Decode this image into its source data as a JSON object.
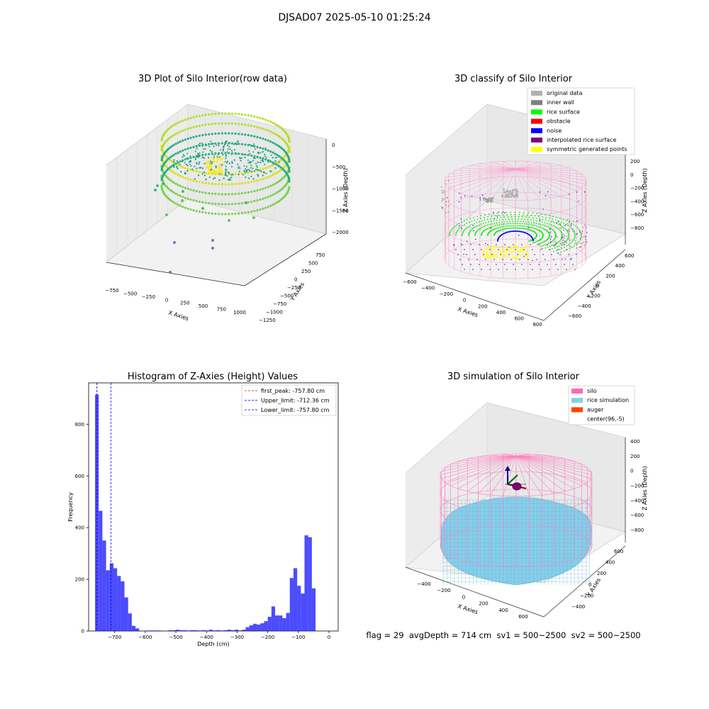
{
  "figure": {
    "suptitle": "DJSAD07 2025-05-10 01:25:24",
    "footer": "flag = 29  avgDepth = 714 cm  sv1 = 500~2500  sv2 = 500~2500"
  },
  "panels": {
    "raw": {
      "title": "3D Plot of Silo Interior(row data)",
      "xlabel": "X Axies",
      "ylabel": "Y Axies",
      "zlabel": "Z Axies (Depth)",
      "xticks": [
        "−750",
        "−500",
        "−250",
        "0",
        "250",
        "500",
        "750",
        "1000"
      ],
      "yticks": [
        "750",
        "500",
        "250",
        "0",
        "−250",
        "−500",
        "−750",
        "−1000",
        "−1250"
      ],
      "zticks": [
        "0",
        "−500",
        "−1000",
        "−1500",
        "−2000"
      ]
    },
    "classify": {
      "title": "3D classify of Silo Interior",
      "xlabel": "X Axies",
      "ylabel": "Y Axies",
      "zlabel": "Z Axies (Depth)",
      "xticks": [
        "−600",
        "−400",
        "−200",
        "0",
        "200",
        "400",
        "600",
        "800"
      ],
      "yticks": [
        "600",
        "400",
        "200",
        "0",
        "−200",
        "−400",
        "−600"
      ],
      "zticks": [
        "200",
        "0",
        "−200",
        "−400",
        "−600",
        "−800"
      ],
      "legend": [
        {
          "label": "original data",
          "color": "#b0b0b0"
        },
        {
          "label": "inner wall",
          "color": "#808080"
        },
        {
          "label": "rice surface",
          "color": "#00ff00"
        },
        {
          "label": "obstacle",
          "color": "#ff0000"
        },
        {
          "label": "noise",
          "color": "#0000ff"
        },
        {
          "label": "interpolated rice surface",
          "color": "#800080"
        },
        {
          "label": "symmetric generated points",
          "color": "#ffff00"
        }
      ]
    },
    "simulation": {
      "title": "3D simulation of Silo Interior",
      "xlabel": "X Axies",
      "ylabel": "Y Axies",
      "zlabel": "Z Axies (Depth)",
      "xticks": [
        "−400",
        "−200",
        "0",
        "200",
        "400",
        "600"
      ],
      "yticks": [
        "600",
        "400",
        "200",
        "0",
        "−200",
        "−400"
      ],
      "zticks": [
        "400",
        "200",
        "0",
        "−200",
        "−400",
        "−600",
        "−800"
      ],
      "legend": [
        {
          "label": "silo",
          "color": "#ff69b4"
        },
        {
          "label": "rice simulation",
          "color": "#87ceeb"
        },
        {
          "label": "auger",
          "color": "#ff4500"
        },
        {
          "label": "center(96,-5)",
          "color": "#ffffff"
        }
      ]
    }
  },
  "chart_data": {
    "type": "bar",
    "title": "Histogram of Z-Axies (Height) Values",
    "xlabel": "Depth (cm)",
    "ylabel": "Frequency",
    "xlim": [
      -785,
      30
    ],
    "ylim": [
      0,
      960
    ],
    "xticks": [
      -700,
      -600,
      -500,
      -400,
      -300,
      -200,
      -100,
      0
    ],
    "yticks": [
      0,
      200,
      400,
      600,
      800
    ],
    "bar_color": "#0000ff",
    "bin_width": 12,
    "bins": [
      {
        "x": -758,
        "count": 915
      },
      {
        "x": -746,
        "count": 465
      },
      {
        "x": -734,
        "count": 350
      },
      {
        "x": -722,
        "count": 235
      },
      {
        "x": -710,
        "count": 262
      },
      {
        "x": -698,
        "count": 243
      },
      {
        "x": -686,
        "count": 213
      },
      {
        "x": -674,
        "count": 192
      },
      {
        "x": -662,
        "count": 130
      },
      {
        "x": -650,
        "count": 68
      },
      {
        "x": -638,
        "count": 20
      },
      {
        "x": -626,
        "count": 10
      },
      {
        "x": -614,
        "count": 0
      },
      {
        "x": -602,
        "count": 0
      },
      {
        "x": -590,
        "count": 2
      },
      {
        "x": -578,
        "count": 2
      },
      {
        "x": -566,
        "count": 2
      },
      {
        "x": -554,
        "count": 2
      },
      {
        "x": -542,
        "count": 0
      },
      {
        "x": -530,
        "count": 0
      },
      {
        "x": -518,
        "count": 3
      },
      {
        "x": -506,
        "count": 3
      },
      {
        "x": -494,
        "count": 5
      },
      {
        "x": -482,
        "count": 3
      },
      {
        "x": -470,
        "count": 3
      },
      {
        "x": -458,
        "count": 2
      },
      {
        "x": -446,
        "count": 3
      },
      {
        "x": -434,
        "count": 3
      },
      {
        "x": -422,
        "count": 2
      },
      {
        "x": -410,
        "count": 3
      },
      {
        "x": -398,
        "count": 2
      },
      {
        "x": -386,
        "count": 5
      },
      {
        "x": -374,
        "count": 2
      },
      {
        "x": -362,
        "count": 3
      },
      {
        "x": -350,
        "count": 2
      },
      {
        "x": -338,
        "count": 3
      },
      {
        "x": -326,
        "count": 5
      },
      {
        "x": -314,
        "count": 3
      },
      {
        "x": -302,
        "count": 5
      },
      {
        "x": -290,
        "count": 2
      },
      {
        "x": -278,
        "count": 5
      },
      {
        "x": -266,
        "count": 15
      },
      {
        "x": -254,
        "count": 22
      },
      {
        "x": -242,
        "count": 28
      },
      {
        "x": -230,
        "count": 25
      },
      {
        "x": -218,
        "count": 30
      },
      {
        "x": -206,
        "count": 38
      },
      {
        "x": -194,
        "count": 55
      },
      {
        "x": -182,
        "count": 95
      },
      {
        "x": -170,
        "count": 60
      },
      {
        "x": -158,
        "count": 60
      },
      {
        "x": -146,
        "count": 50
      },
      {
        "x": -134,
        "count": 70
      },
      {
        "x": -122,
        "count": 205
      },
      {
        "x": -110,
        "count": 243
      },
      {
        "x": -98,
        "count": 175
      },
      {
        "x": -86,
        "count": 145
      },
      {
        "x": -74,
        "count": 370
      },
      {
        "x": -62,
        "count": 363
      },
      {
        "x": -50,
        "count": 165
      }
    ],
    "lines": [
      {
        "label": "first_peak: -757.80 cm",
        "x": -757.8,
        "color": "#ff0000"
      },
      {
        "label": "Upper_limit: -712.36 cm",
        "x": -712.36,
        "color": "#0000ff"
      },
      {
        "label": "Lower_limit: -757.80 cm",
        "x": -757.8,
        "color": "#0000ff"
      }
    ]
  }
}
